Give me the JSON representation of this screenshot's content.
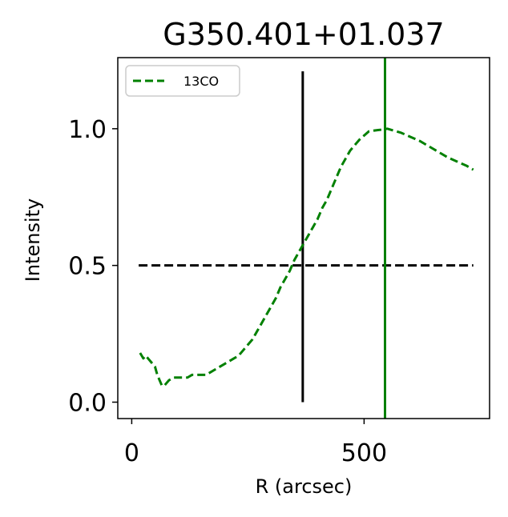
{
  "chart_data": {
    "type": "line",
    "title": "G350.401+01.037",
    "xlabel": "R (arcsec)",
    "ylabel": "Intensity",
    "xlim": [
      -30,
      770
    ],
    "ylim": [
      -0.06,
      1.26
    ],
    "xticks": [
      0,
      500
    ],
    "xtick_labels": [
      "0",
      "500"
    ],
    "yticks": [
      0.0,
      0.5,
      1.0
    ],
    "ytick_labels": [
      "0.0",
      "0.5",
      "1.0"
    ],
    "grid": false,
    "legend": {
      "position": "top-left",
      "entries": [
        {
          "label": "13CO",
          "color": "#008000",
          "style": "dashed"
        }
      ]
    },
    "series": [
      {
        "name": "13CO",
        "color": "#008000",
        "style": "dashed",
        "x": [
          18,
          25,
          30,
          35,
          40,
          45,
          50,
          55,
          60,
          65,
          70,
          75,
          80,
          90,
          100,
          110,
          120,
          130,
          140,
          150,
          160,
          170,
          180,
          190,
          200,
          210,
          220,
          230,
          240,
          250,
          260,
          270,
          280,
          290,
          300,
          310,
          320,
          330,
          340,
          350,
          360,
          370,
          380,
          390,
          400,
          410,
          420,
          430,
          440,
          450,
          460,
          470,
          480,
          490,
          500,
          510,
          520,
          530,
          540,
          550,
          560,
          580,
          600,
          620,
          640,
          660,
          680,
          700,
          720,
          735
        ],
        "y": [
          0.18,
          0.16,
          0.17,
          0.16,
          0.15,
          0.14,
          0.13,
          0.1,
          0.08,
          0.06,
          0.06,
          0.07,
          0.08,
          0.09,
          0.09,
          0.09,
          0.09,
          0.1,
          0.1,
          0.1,
          0.1,
          0.11,
          0.12,
          0.13,
          0.14,
          0.15,
          0.16,
          0.17,
          0.19,
          0.21,
          0.23,
          0.26,
          0.29,
          0.32,
          0.35,
          0.38,
          0.42,
          0.45,
          0.48,
          0.52,
          0.55,
          0.58,
          0.61,
          0.64,
          0.67,
          0.71,
          0.74,
          0.78,
          0.82,
          0.86,
          0.89,
          0.92,
          0.94,
          0.96,
          0.975,
          0.99,
          0.993,
          0.995,
          0.997,
          1.0,
          0.995,
          0.985,
          0.97,
          0.955,
          0.935,
          0.915,
          0.895,
          0.88,
          0.865,
          0.85
        ]
      }
    ],
    "reference_lines": [
      {
        "type": "horizontal",
        "y": 0.5,
        "x_range": [
          15,
          735
        ],
        "color": "#000000",
        "style": "dashed"
      },
      {
        "type": "vertical",
        "x": 368,
        "y_range": [
          0.0,
          1.21
        ],
        "color": "#000000",
        "style": "solid"
      },
      {
        "type": "vertical",
        "x": 545,
        "y_range": [
          -0.06,
          1.26
        ],
        "color": "#008000",
        "style": "solid"
      }
    ]
  }
}
